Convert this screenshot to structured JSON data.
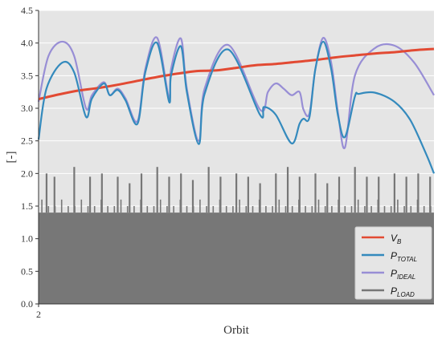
{
  "chart_data": {
    "type": "line",
    "xlabel": "Orbit",
    "ylabel": "[-]",
    "x_ticks": [
      "2"
    ],
    "ylim": [
      0.0,
      4.5
    ],
    "y_ticks": [
      "0.0",
      "0.5",
      "1.0",
      "1.5",
      "2.0",
      "2.5",
      "3.0",
      "3.5",
      "4.0",
      "4.5"
    ],
    "grid": true,
    "legend_position": "bottom-right",
    "series": [
      {
        "name": "V_B",
        "legend": {
          "main": "V",
          "sub": "B"
        },
        "color": "#e24a33",
        "x": [
          0.0,
          0.05,
          0.1,
          0.15,
          0.2,
          0.25,
          0.3,
          0.35,
          0.4,
          0.45,
          0.5,
          0.55,
          0.6,
          0.65,
          0.7,
          0.75,
          0.8,
          0.85,
          0.9,
          0.95,
          1.0
        ],
        "y": [
          3.14,
          3.21,
          3.27,
          3.31,
          3.36,
          3.42,
          3.48,
          3.53,
          3.57,
          3.58,
          3.62,
          3.66,
          3.68,
          3.71,
          3.74,
          3.78,
          3.81,
          3.84,
          3.86,
          3.89,
          3.91
        ]
      },
      {
        "name": "P_TOTAL",
        "legend": {
          "main": "P",
          "sub": "TOTAL"
        },
        "color": "#348abd",
        "x": [
          0.0,
          0.02,
          0.06,
          0.09,
          0.12,
          0.135,
          0.165,
          0.18,
          0.2,
          0.22,
          0.25,
          0.27,
          0.3,
          0.33,
          0.335,
          0.36,
          0.375,
          0.405,
          0.42,
          0.48,
          0.56,
          0.57,
          0.6,
          0.64,
          0.66,
          0.67,
          0.685,
          0.7,
          0.72,
          0.74,
          0.7575,
          0.775,
          0.8,
          0.81,
          0.85,
          0.9,
          0.94,
          0.98,
          1.0
        ],
        "y": [
          2.52,
          3.3,
          3.7,
          3.55,
          2.87,
          3.15,
          3.38,
          3.2,
          3.28,
          3.12,
          2.76,
          3.55,
          4.0,
          3.1,
          3.5,
          3.95,
          3.25,
          2.45,
          3.22,
          3.9,
          2.9,
          3.02,
          2.9,
          2.46,
          2.76,
          2.84,
          2.86,
          3.6,
          4.02,
          3.6,
          2.88,
          2.56,
          3.18,
          3.22,
          3.24,
          3.1,
          2.82,
          2.3,
          2.0
        ]
      },
      {
        "name": "P_IDEAL",
        "legend": {
          "main": "P",
          "sub": "IDEAL"
        },
        "color": "#988ed5",
        "x": [
          0.0,
          0.025,
          0.06,
          0.09,
          0.12,
          0.135,
          0.165,
          0.18,
          0.2,
          0.22,
          0.25,
          0.27,
          0.3,
          0.33,
          0.335,
          0.36,
          0.375,
          0.405,
          0.42,
          0.48,
          0.56,
          0.58,
          0.6,
          0.62,
          0.64,
          0.66,
          0.67,
          0.685,
          0.7,
          0.72,
          0.74,
          0.7575,
          0.775,
          0.8,
          0.85,
          0.9,
          0.95,
          1.0
        ],
        "y": [
          3.1,
          3.8,
          4.02,
          3.8,
          3.0,
          3.2,
          3.4,
          3.2,
          3.3,
          3.15,
          2.8,
          3.6,
          4.08,
          3.15,
          3.6,
          4.07,
          3.3,
          2.5,
          3.3,
          3.97,
          2.98,
          3.25,
          3.38,
          3.3,
          3.2,
          3.25,
          2.98,
          2.92,
          3.6,
          4.08,
          3.7,
          2.92,
          2.4,
          3.5,
          3.92,
          3.96,
          3.7,
          3.2
        ]
      },
      {
        "name": "P_LOAD",
        "legend": {
          "main": "P",
          "sub": "LOAD"
        },
        "color": "#777777",
        "baseline": 1.4,
        "x": [
          0.02,
          0.04,
          0.09,
          0.13,
          0.16,
          0.2,
          0.23,
          0.26,
          0.3,
          0.33,
          0.36,
          0.39,
          0.43,
          0.46,
          0.5,
          0.53,
          0.56,
          0.6,
          0.63,
          0.66,
          0.7,
          0.73,
          0.76,
          0.8,
          0.83,
          0.86,
          0.9,
          0.93,
          0.96,
          0.99
        ],
        "y": [
          2.0,
          1.95,
          2.1,
          1.95,
          2.0,
          1.95,
          1.85,
          2.0,
          2.1,
          1.95,
          2.0,
          1.9,
          2.1,
          1.95,
          2.0,
          1.95,
          1.85,
          2.0,
          2.1,
          1.95,
          2.0,
          1.85,
          1.95,
          2.1,
          1.95,
          1.95,
          2.0,
          1.95,
          2.0,
          1.95
        ]
      }
    ]
  }
}
